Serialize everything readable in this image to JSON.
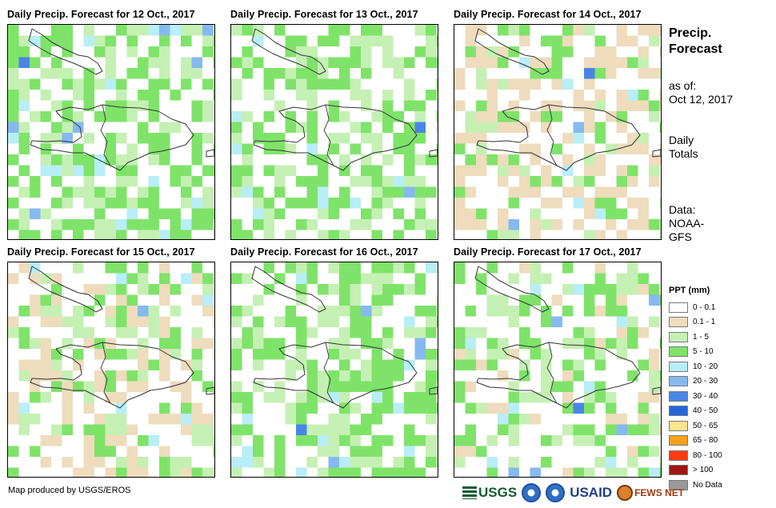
{
  "panels": [
    {
      "title": "Daily Precip. Forecast for 12 Oct., 2017",
      "seed": 12,
      "wet": 0.62
    },
    {
      "title": "Daily Precip. Forecast for 13 Oct., 2017",
      "seed": 13,
      "wet": 0.58
    },
    {
      "title": "Daily Precip. Forecast for 14 Oct., 2017",
      "seed": 14,
      "wet": 0.22
    },
    {
      "title": "Daily Precip. Forecast for 15 Oct., 2017",
      "seed": 15,
      "wet": 0.3
    },
    {
      "title": "Daily Precip. Forecast for 16 Oct., 2017",
      "seed": 16,
      "wet": 0.6
    },
    {
      "title": "Daily Precip. Forecast for 17 Oct., 2017",
      "seed": 17,
      "wet": 0.46
    }
  ],
  "side": {
    "title_line1": "Precip.",
    "title_line2": "Forecast",
    "asof_line1": "as of:",
    "asof_line2": "Oct 12, 2017",
    "totals_line1": "Daily",
    "totals_line2": "Totals",
    "data_line1": "Data:",
    "data_line2": "NOAA-",
    "data_line3": "GFS"
  },
  "legend": {
    "title": "PPT (mm)",
    "items": [
      {
        "label": "0 - 0.1",
        "color": "#ffffff"
      },
      {
        "label": "0.1 - 1",
        "color": "#eedcbd"
      },
      {
        "label": "1 - 5",
        "color": "#c5f0b4"
      },
      {
        "label": "5 - 10",
        "color": "#7fe36a"
      },
      {
        "label": "10 - 20",
        "color": "#b8eef7"
      },
      {
        "label": "20 - 30",
        "color": "#86b9f0"
      },
      {
        "label": "30 - 40",
        "color": "#4a85e6"
      },
      {
        "label": "40 - 50",
        "color": "#2466d9"
      },
      {
        "label": "50 - 65",
        "color": "#fbe48a"
      },
      {
        "label": "65 - 80",
        "color": "#f5a21a"
      },
      {
        "label": "80 - 100",
        "color": "#ff3a10"
      },
      {
        "label": "> 100",
        "color": "#a01616"
      },
      {
        "label": "No Data",
        "color": "#999999"
      }
    ]
  },
  "credit": "Map produced by USGS/EROS",
  "logos": {
    "usgs": "USGS",
    "usaid": "USAID",
    "fews": "FEWS NET"
  }
}
